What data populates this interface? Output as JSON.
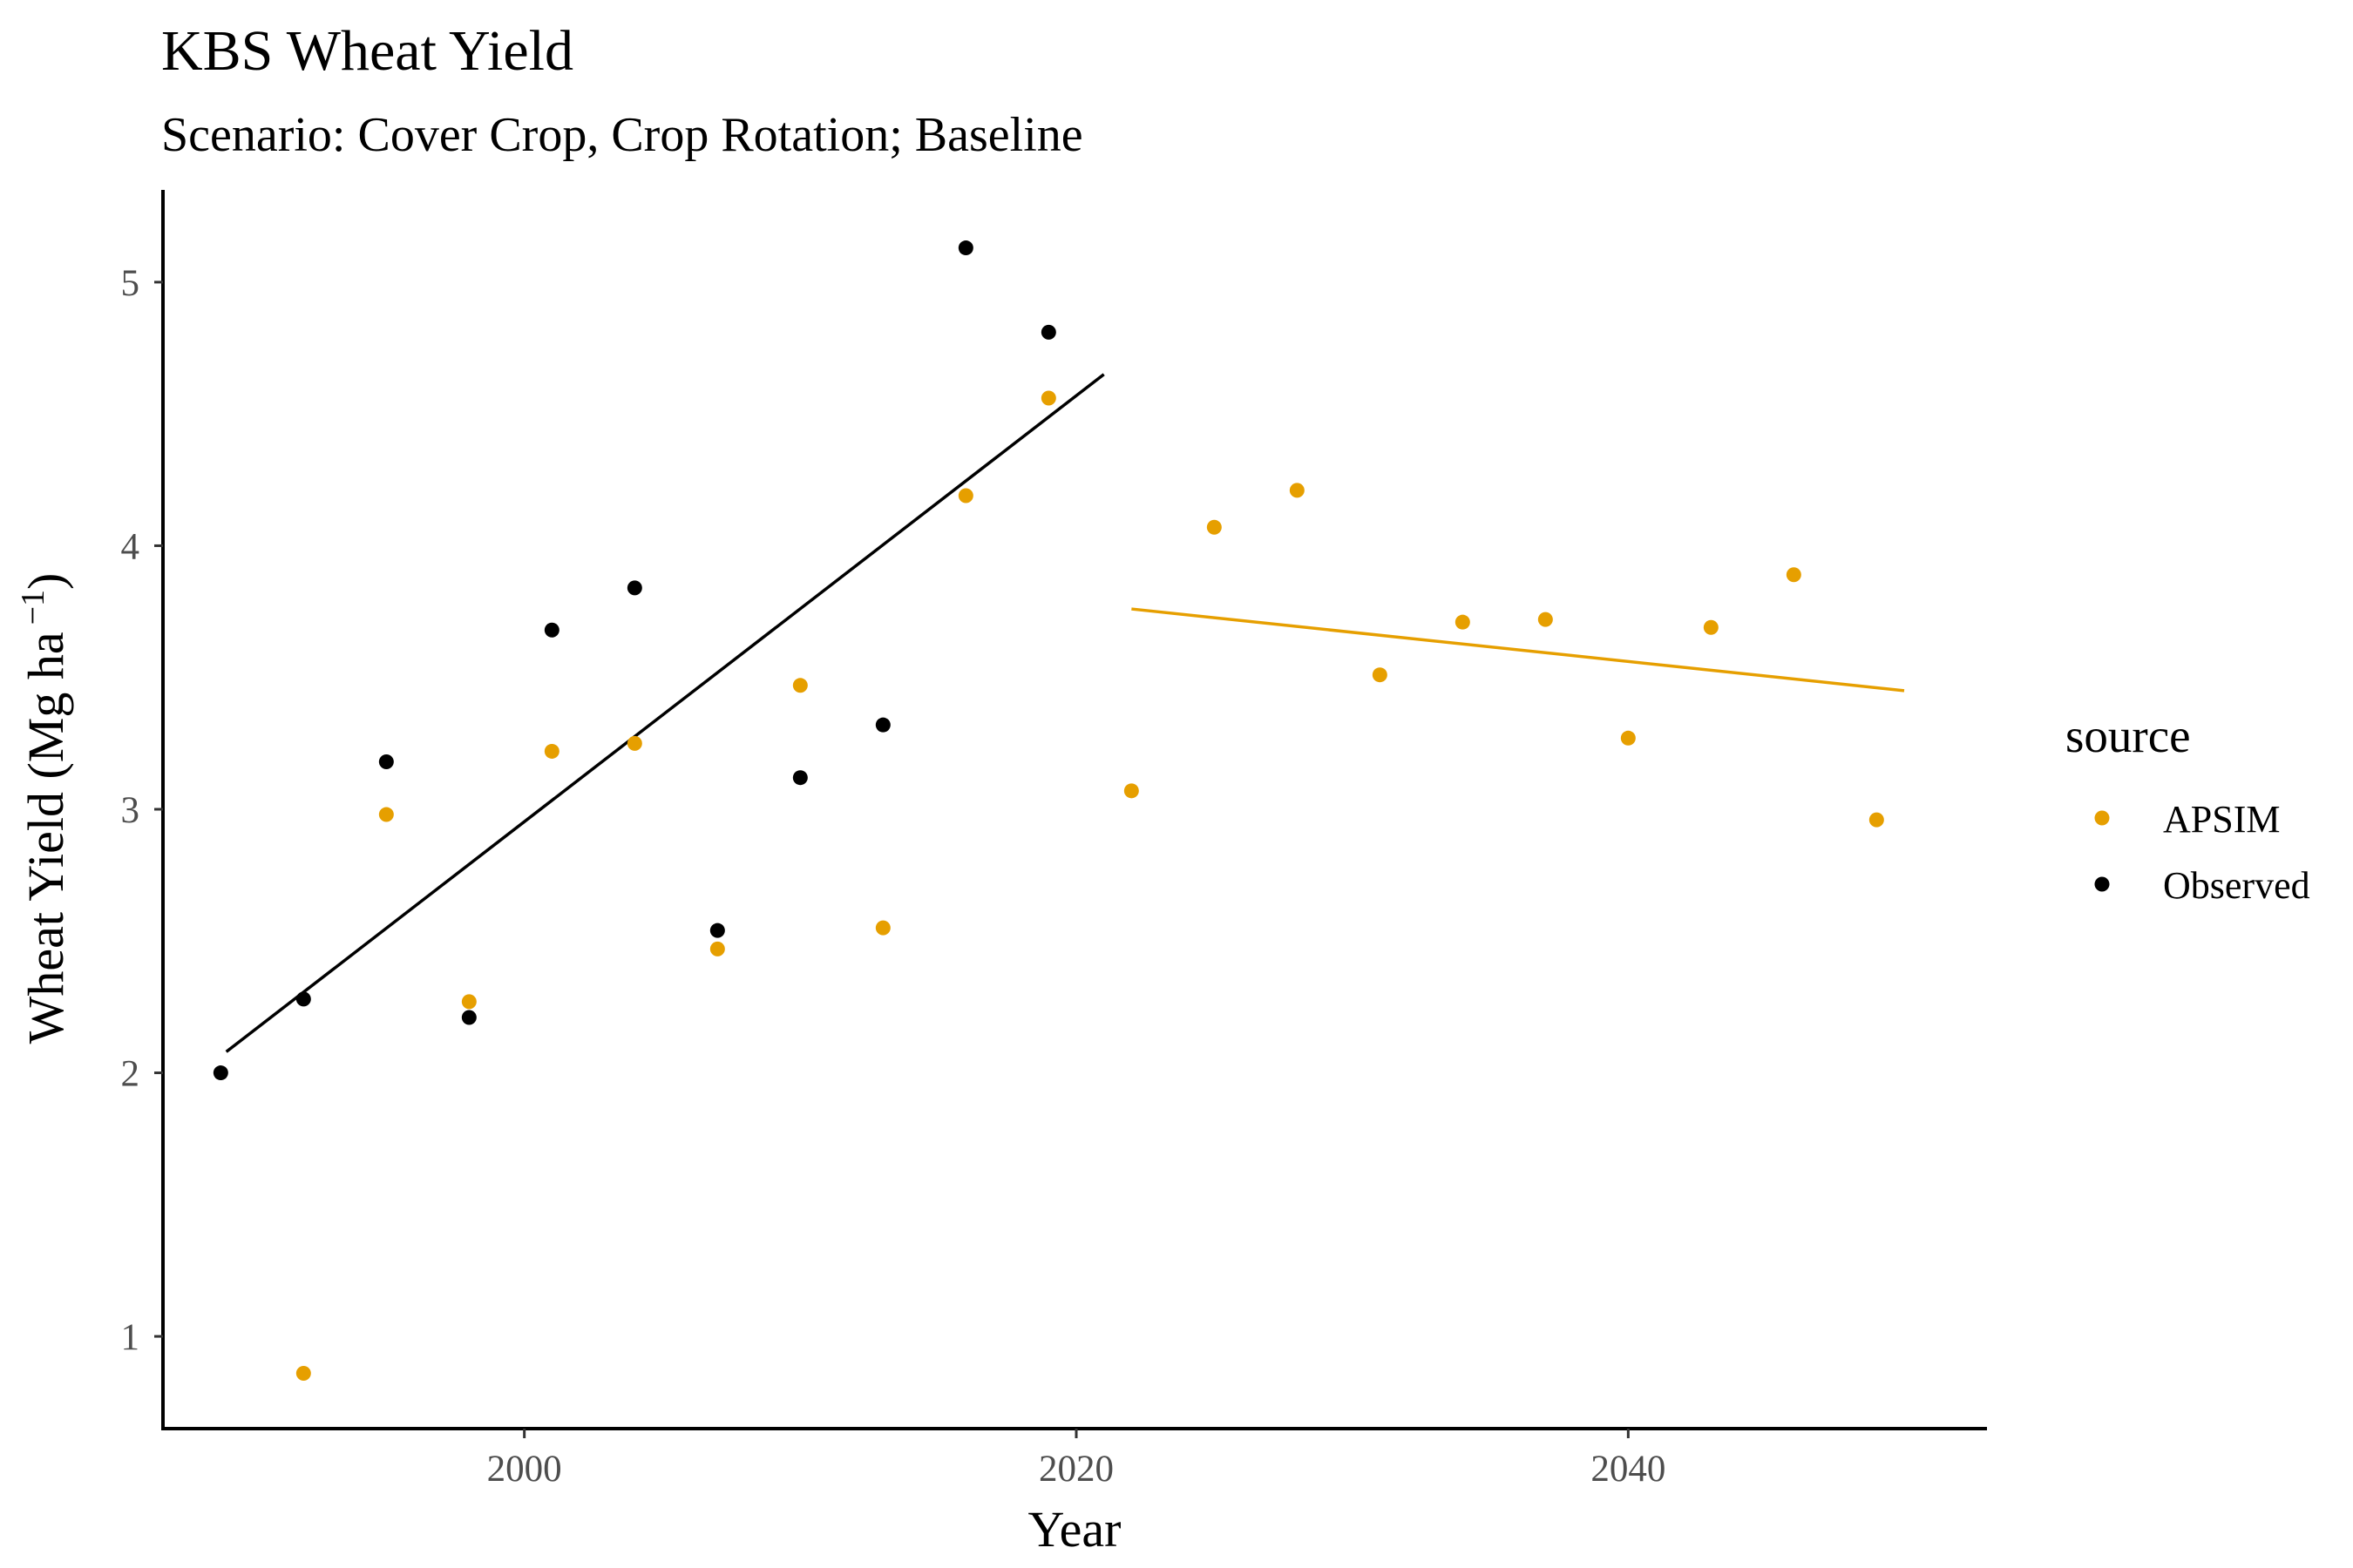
{
  "chart_data": {
    "type": "scatter",
    "title": "KBS Wheat Yield",
    "subtitle": "Scenario: Cover Crop, Crop Rotation; Baseline",
    "xlabel": "Year",
    "ylabel_main": "Wheat Yield (Mg ha",
    "ylabel_sup": "−1",
    "ylabel_close": ")",
    "xlim": [
      1987,
      2053
    ],
    "ylim": [
      0.65,
      5.35
    ],
    "x_ticks": [
      2000,
      2020,
      2040
    ],
    "y_ticks": [
      1,
      2,
      3,
      4,
      5
    ],
    "grid": false,
    "legend": {
      "title": "source",
      "position": "right"
    },
    "series": [
      {
        "name": "APSIM",
        "color": "#E69F00",
        "points": [
          [
            1992,
            0.86
          ],
          [
            1995,
            2.98
          ],
          [
            1998,
            2.27
          ],
          [
            2001,
            3.22
          ],
          [
            2004,
            3.25
          ],
          [
            2007,
            2.47
          ],
          [
            2010,
            3.47
          ],
          [
            2013,
            2.55
          ],
          [
            2016,
            4.19
          ],
          [
            2019,
            4.56
          ],
          [
            2022,
            3.07
          ],
          [
            2025,
            4.07
          ],
          [
            2028,
            4.21
          ],
          [
            2031,
            3.51
          ],
          [
            2034,
            3.71
          ],
          [
            2037,
            3.72
          ],
          [
            2040,
            3.27
          ],
          [
            2043,
            3.69
          ],
          [
            2046,
            3.89
          ],
          [
            2049,
            2.96
          ]
        ],
        "trend": {
          "x": [
            2022,
            2050
          ],
          "y": [
            3.76,
            3.45
          ]
        }
      },
      {
        "name": "Observed",
        "color": "#000000",
        "points": [
          [
            1989,
            2.0
          ],
          [
            1992,
            2.28
          ],
          [
            1995,
            3.18
          ],
          [
            1998,
            2.21
          ],
          [
            2001,
            3.68
          ],
          [
            2004,
            3.84
          ],
          [
            2007,
            2.54
          ],
          [
            2010,
            3.12
          ],
          [
            2013,
            3.32
          ],
          [
            2016,
            5.13
          ],
          [
            2019,
            4.81
          ]
        ],
        "trend": {
          "x": [
            1989.2,
            2021
          ],
          "y": [
            2.08,
            4.65
          ]
        }
      }
    ]
  }
}
